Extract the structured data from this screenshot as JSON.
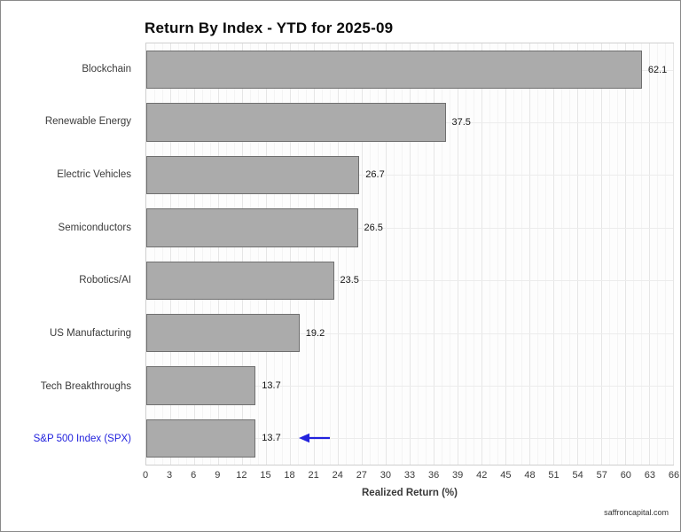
{
  "title": "Return By Index - YTD for 2025-09",
  "footer": "saffroncapital.com",
  "chart_data": {
    "type": "bar",
    "orientation": "horizontal",
    "title": "Return By Index - YTD for 2025-09",
    "categories": [
      "Blockchain",
      "Renewable Energy",
      "Electric Vehicles",
      "Semiconductors",
      "Robotics/AI",
      "US Manufacturing",
      "Tech Breakthroughs",
      "S&P 500 Index (SPX)"
    ],
    "values": [
      62.1,
      37.5,
      26.7,
      26.5,
      23.5,
      19.2,
      13.7,
      13.7
    ],
    "value_labels": [
      "62.1",
      "37.5",
      "26.7",
      "26.5",
      "23.5",
      "19.2",
      "13.7",
      "13.7"
    ],
    "xlabel": "Realized Return (%)",
    "xlim": [
      0,
      66
    ],
    "xtick_step": 3,
    "grid": "on",
    "legend": "none",
    "highlight": {
      "index": 7,
      "label_color": "#2222dd",
      "annotation": "left-arrow",
      "arrow_color": "#2222dd"
    }
  },
  "colors": {
    "bar_fill": "#ababab",
    "bar_border": "#6f6f6f",
    "grid_major": "#e6e6e6",
    "grid_minor": "#f4f4f4",
    "panel_border": "#cfcfcf",
    "highlight_blue": "#2222dd"
  }
}
